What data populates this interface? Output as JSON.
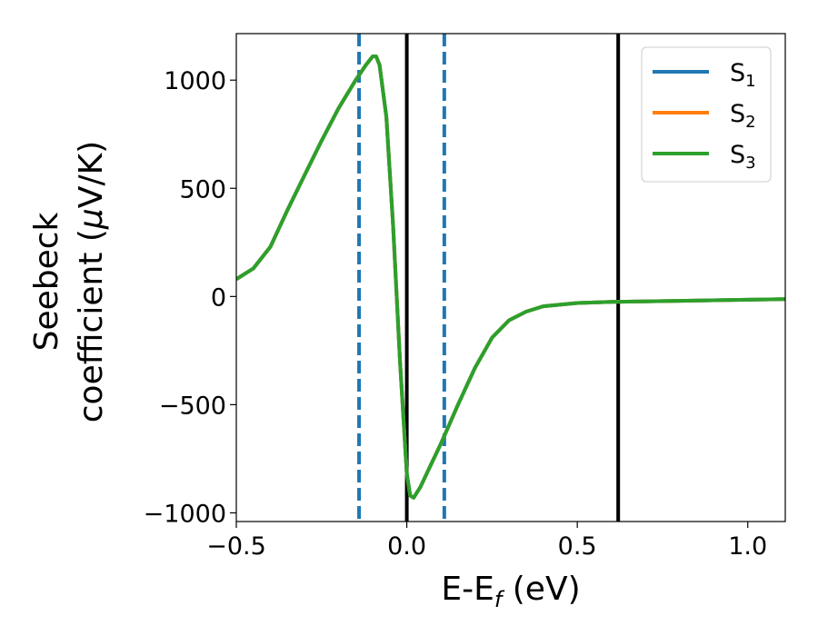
{
  "chart_data": {
    "type": "line",
    "xlabel": {
      "main": "E-E",
      "sub": "f",
      "unit": " (eV)"
    },
    "ylabel": {
      "line1": "Seebeck",
      "line2_pre": "coefficient  (",
      "mu": "μ",
      "line2_post": "V/K)"
    },
    "xlim": [
      -0.5,
      1.11
    ],
    "ylim": [
      -1040,
      1215
    ],
    "xticks": [
      {
        "value": -0.5,
        "label": "−0.5"
      },
      {
        "value": 0.0,
        "label": "0.0"
      },
      {
        "value": 0.5,
        "label": "0.5"
      },
      {
        "value": 1.0,
        "label": "1.0"
      }
    ],
    "yticks": [
      {
        "value": 1000,
        "label": "1000"
      },
      {
        "value": 500,
        "label": "500"
      },
      {
        "value": 0,
        "label": "0"
      },
      {
        "value": -500,
        "label": "−500"
      },
      {
        "value": -1000,
        "label": "−1000"
      }
    ],
    "grid": false,
    "legend_position": "top-right",
    "series": [
      {
        "name": "S",
        "sub": "1",
        "color": "#1f77b4",
        "x": [
          -0.5,
          -0.45,
          -0.4,
          -0.35,
          -0.3,
          -0.25,
          -0.2,
          -0.15,
          -0.12,
          -0.1,
          -0.09,
          -0.08,
          -0.06,
          -0.04,
          -0.02,
          0.0,
          0.01,
          0.02,
          0.04,
          0.07,
          0.1,
          0.15,
          0.2,
          0.25,
          0.3,
          0.35,
          0.4,
          0.5,
          0.6,
          0.8,
          1.0,
          1.11
        ],
        "y": [
          80,
          130,
          230,
          400,
          560,
          720,
          870,
          1000,
          1070,
          1110,
          1110,
          1070,
          830,
          320,
          -300,
          -820,
          -920,
          -930,
          -880,
          -780,
          -680,
          -500,
          -330,
          -190,
          -110,
          -70,
          -45,
          -30,
          -25,
          -20,
          -15,
          -12
        ]
      },
      {
        "name": "S",
        "sub": "2",
        "color": "#ff7f0e",
        "x": [
          -0.5,
          -0.45,
          -0.4,
          -0.35,
          -0.3,
          -0.25,
          -0.2,
          -0.15,
          -0.12,
          -0.1,
          -0.09,
          -0.08,
          -0.06,
          -0.04,
          -0.02,
          0.0,
          0.01,
          0.02,
          0.04,
          0.07,
          0.1,
          0.15,
          0.2,
          0.25,
          0.3,
          0.35,
          0.4,
          0.5,
          0.6,
          0.8,
          1.0,
          1.11
        ],
        "y": [
          80,
          130,
          230,
          400,
          560,
          720,
          870,
          1000,
          1070,
          1110,
          1110,
          1070,
          830,
          320,
          -300,
          -820,
          -920,
          -930,
          -880,
          -780,
          -680,
          -500,
          -330,
          -190,
          -110,
          -70,
          -45,
          -30,
          -25,
          -20,
          -15,
          -12
        ]
      },
      {
        "name": "S",
        "sub": "3",
        "color": "#2ca02c",
        "x": [
          -0.5,
          -0.45,
          -0.4,
          -0.35,
          -0.3,
          -0.25,
          -0.2,
          -0.15,
          -0.12,
          -0.1,
          -0.09,
          -0.08,
          -0.06,
          -0.04,
          -0.02,
          0.0,
          0.01,
          0.02,
          0.04,
          0.07,
          0.1,
          0.15,
          0.2,
          0.25,
          0.3,
          0.35,
          0.4,
          0.5,
          0.6,
          0.8,
          1.0,
          1.11
        ],
        "y": [
          80,
          130,
          230,
          400,
          560,
          720,
          870,
          1000,
          1070,
          1110,
          1110,
          1070,
          830,
          320,
          -300,
          -820,
          -920,
          -930,
          -880,
          -780,
          -680,
          -500,
          -330,
          -190,
          -110,
          -70,
          -45,
          -30,
          -25,
          -20,
          -15,
          -12
        ]
      }
    ],
    "vlines": [
      {
        "x": -0.14,
        "color": "#1f77b4",
        "style": "dashed"
      },
      {
        "x": 0.11,
        "color": "#1f77b4",
        "style": "dashed"
      },
      {
        "x": 0.0,
        "color": "#000000",
        "style": "solid"
      },
      {
        "x": 0.62,
        "color": "#000000",
        "style": "solid"
      }
    ]
  }
}
